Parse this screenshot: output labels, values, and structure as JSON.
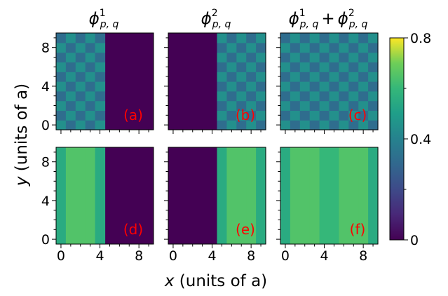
{
  "chart_data": {
    "type": "heatmap",
    "colormap": "viridis",
    "vmin": 0,
    "vmax": 0.8,
    "colorbar_ticks": [
      "0",
      "0.4",
      "0.8"
    ],
    "colorbar_ticks_values": [
      0,
      0.4,
      0.8
    ],
    "colorbar_minor_ticks_values": [
      0.2,
      0.6
    ],
    "column_titles": [
      {
        "phi": "ϕ",
        "sup": "1",
        "sub": "p, q"
      },
      {
        "phi": "ϕ",
        "sup": "2",
        "sub": "p, q"
      },
      {
        "phi": "ϕ",
        "sup": "1",
        "sub": "p, q",
        "plus": "+",
        "phi2": "ϕ",
        "sup2": "2",
        "sub2": "p, q"
      }
    ],
    "xlabel": {
      "var": "x",
      "rest": " (units of a)"
    },
    "ylabel": {
      "var": "y",
      "rest": " (units of a)"
    },
    "xticks": [
      "0",
      "4",
      "8"
    ],
    "xticks_values": [
      0,
      4,
      8
    ],
    "yticks": [
      "0",
      "4",
      "8"
    ],
    "yticks_values": [
      0,
      4,
      8
    ],
    "xlim": [
      -0.5,
      9.5
    ],
    "ylim": [
      -0.5,
      9.5
    ],
    "x_columns": [
      0,
      1,
      2,
      3,
      4,
      5,
      6,
      7,
      8,
      9
    ],
    "panels": [
      {
        "label": "(a)",
        "row": 0,
        "col": 0,
        "pattern": "checker",
        "columns": "0-4",
        "high": 0.45,
        "low": 0.32
      },
      {
        "label": "(b)",
        "row": 0,
        "col": 1,
        "pattern": "checker",
        "columns": "5-9",
        "high": 0.45,
        "low": 0.32
      },
      {
        "label": "(c)",
        "row": 0,
        "col": 2,
        "pattern": "checker",
        "columns": "0-9",
        "high": 0.45,
        "low": 0.32
      },
      {
        "label": "(d)",
        "row": 1,
        "col": 0,
        "pattern": "stripes",
        "column_values": [
          0.55,
          0.65,
          0.65,
          0.65,
          0.55,
          0,
          0,
          0,
          0,
          0
        ]
      },
      {
        "label": "(e)",
        "row": 1,
        "col": 1,
        "pattern": "stripes",
        "column_values": [
          0,
          0,
          0,
          0,
          0,
          0.55,
          0.65,
          0.65,
          0.65,
          0.55
        ]
      },
      {
        "label": "(f)",
        "row": 1,
        "col": 2,
        "pattern": "stripes",
        "column_values": [
          0.55,
          0.65,
          0.65,
          0.65,
          0.6,
          0.6,
          0.65,
          0.65,
          0.65,
          0.55
        ]
      }
    ]
  }
}
